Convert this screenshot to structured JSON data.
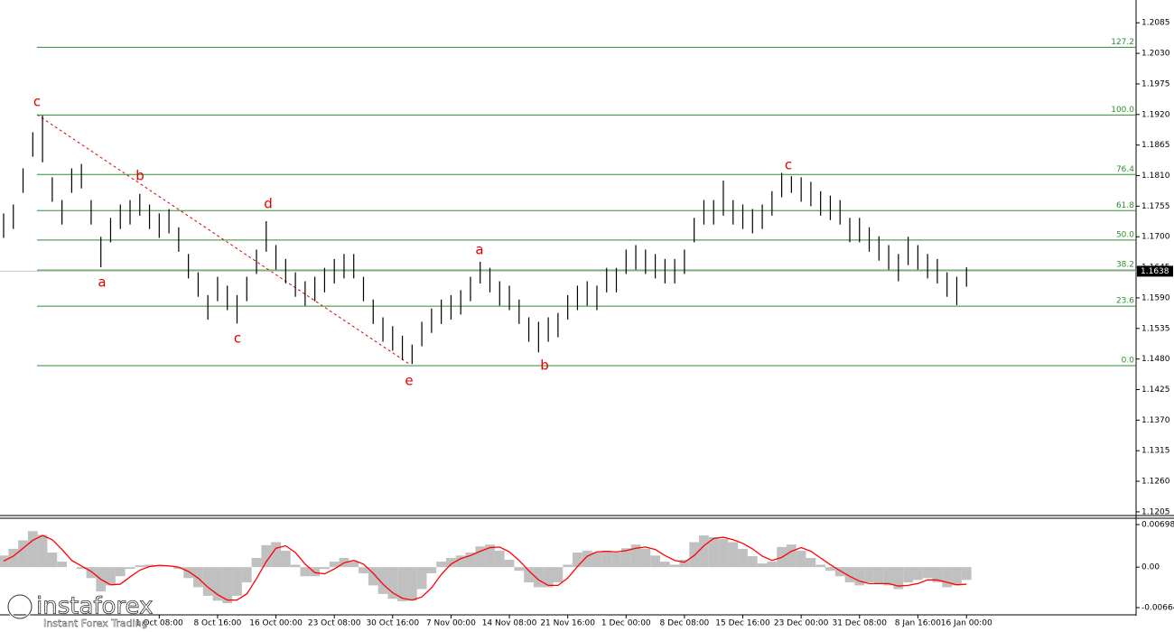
{
  "chart_data": [
    {
      "type": "hilo",
      "color": "#000000",
      "high": [
        1.1742,
        1.1758,
        1.1823,
        1.1888,
        1.1918,
        1.1807,
        1.1766,
        1.1823,
        1.1831,
        1.1766,
        1.17,
        1.1734,
        1.1758,
        1.1766,
        1.1777,
        1.1758,
        1.1742,
        1.175,
        1.1717,
        1.1669,
        1.1636,
        1.1595,
        1.1628,
        1.1612,
        1.1595,
        1.1628,
        1.1677,
        1.1728,
        1.1685,
        1.166,
        1.1636,
        1.162,
        1.1628,
        1.1644,
        1.166,
        1.1669,
        1.1669,
        1.1628,
        1.1587,
        1.1555,
        1.1539,
        1.1522,
        1.1506,
        1.1547,
        1.1571,
        1.1587,
        1.1595,
        1.1604,
        1.1628,
        1.1655,
        1.1644,
        1.162,
        1.1612,
        1.1587,
        1.1555,
        1.1547,
        1.1555,
        1.1563,
        1.1595,
        1.1612,
        1.162,
        1.1612,
        1.1644,
        1.1644,
        1.1677,
        1.1685,
        1.1677,
        1.1669,
        1.166,
        1.166,
        1.1677,
        1.1734,
        1.1766,
        1.1766,
        1.1801,
        1.1766,
        1.1758,
        1.175,
        1.1758,
        1.1782,
        1.1815,
        1.1809,
        1.1807,
        1.1799,
        1.1782,
        1.1774,
        1.1766,
        1.1734,
        1.1734,
        1.1717,
        1.1701,
        1.1685,
        1.1669,
        1.17,
        1.1685,
        1.1669,
        1.166,
        1.1636,
        1.1628,
        1.1645
      ],
      "low": [
        1.1698,
        1.1714,
        1.1779,
        1.1844,
        1.1834,
        1.1763,
        1.1722,
        1.1779,
        1.1787,
        1.1722,
        1.1645,
        1.169,
        1.1714,
        1.1722,
        1.1738,
        1.1714,
        1.1698,
        1.1706,
        1.1673,
        1.1625,
        1.1592,
        1.1551,
        1.1584,
        1.1568,
        1.1544,
        1.1584,
        1.1633,
        1.1673,
        1.1641,
        1.1616,
        1.1592,
        1.1576,
        1.1584,
        1.16,
        1.1616,
        1.1625,
        1.1625,
        1.1584,
        1.1543,
        1.1511,
        1.1495,
        1.1478,
        1.1471,
        1.1503,
        1.1527,
        1.1543,
        1.1551,
        1.156,
        1.1584,
        1.1616,
        1.16,
        1.1576,
        1.1568,
        1.1543,
        1.1511,
        1.1492,
        1.1511,
        1.1519,
        1.1551,
        1.1568,
        1.1576,
        1.1568,
        1.16,
        1.16,
        1.1633,
        1.1641,
        1.1633,
        1.1625,
        1.1616,
        1.1616,
        1.1633,
        1.169,
        1.1722,
        1.1722,
        1.1738,
        1.1722,
        1.1714,
        1.1706,
        1.1714,
        1.1738,
        1.1771,
        1.1779,
        1.1763,
        1.1755,
        1.1738,
        1.173,
        1.1722,
        1.169,
        1.169,
        1.1673,
        1.1657,
        1.1641,
        1.162,
        1.1649,
        1.1641,
        1.1625,
        1.1616,
        1.1592,
        1.1577,
        1.161
      ],
      "ylim": [
        1.12,
        1.2126
      ],
      "yticks": [
        {
          "value": 1.2085,
          "label": "1.2085"
        },
        {
          "value": 1.203,
          "label": "1.2030"
        },
        {
          "value": 1.1975,
          "label": "1.1975"
        },
        {
          "value": 1.192,
          "label": "1.1920"
        },
        {
          "value": 1.1865,
          "label": "1.1865"
        },
        {
          "value": 1.181,
          "label": "1.1810"
        },
        {
          "value": 1.1755,
          "label": "1.1755"
        },
        {
          "value": 1.17,
          "label": "1.1700"
        },
        {
          "value": 1.1645,
          "label": "1.1645"
        },
        {
          "value": 1.159,
          "label": "1.1590"
        },
        {
          "value": 1.1535,
          "label": "1.1535"
        },
        {
          "value": 1.148,
          "label": "1.1480"
        },
        {
          "value": 1.1425,
          "label": "1.1425"
        },
        {
          "value": 1.137,
          "label": "1.1370"
        },
        {
          "value": 1.1315,
          "label": "1.1315"
        },
        {
          "value": 1.126,
          "label": "1.1260"
        },
        {
          "value": 1.1205,
          "label": "1.1205"
        }
      ],
      "fib_color": "#2e8b2e",
      "fib_levels": [
        {
          "value": 1.2041,
          "label": "127.2"
        },
        {
          "value": 1.1919,
          "label": "100.0"
        },
        {
          "value": 1.1812,
          "label": "76.4"
        },
        {
          "value": 1.1747,
          "label": "61.8"
        },
        {
          "value": 1.1694,
          "label": "50.0"
        },
        {
          "value": 1.164,
          "label": "38.2"
        },
        {
          "value": 1.1575,
          "label": "23.6"
        },
        {
          "value": 1.1468,
          "label": "0.0"
        }
      ],
      "annotations": [
        "c",
        "a",
        "b",
        "c",
        "d",
        "e",
        "a",
        "b",
        "c"
      ],
      "annotation_color": "#e00000",
      "last_price": 1.1638
    },
    {
      "type": "macd",
      "categories": [
        null,
        null,
        null,
        null,
        null,
        null,
        null,
        null,
        null,
        null,
        null,
        null,
        null,
        null,
        null,
        null,
        "1 Oct 08:00",
        null,
        null,
        null,
        null,
        null,
        "8 Oct 16:00",
        null,
        null,
        null,
        null,
        null,
        "16 Oct 00:00",
        null,
        null,
        null,
        null,
        null,
        "23 Oct 08:00",
        null,
        null,
        null,
        null,
        null,
        "30 Oct 16:00",
        null,
        null,
        null,
        null,
        null,
        "7 Nov 00:00",
        null,
        null,
        null,
        null,
        null,
        "14 Nov 08:00",
        null,
        null,
        null,
        null,
        null,
        "21 Nov 16:00",
        null,
        null,
        null,
        null,
        null,
        "1 Dec 00:00",
        null,
        null,
        null,
        null,
        null,
        "8 Dec 08:00",
        null,
        null,
        null,
        null,
        null,
        "15 Dec 16:00",
        null,
        null,
        null,
        null,
        null,
        "23 Dec 00:00",
        null,
        null,
        null,
        null,
        null,
        "31 Dec 08:00",
        null,
        null,
        null,
        null,
        null,
        "8 Jan 16:00",
        null,
        null,
        null,
        null,
        "16 Jan 00:00"
      ],
      "histogram": {
        "color": "#c0c0c0",
        "values": [
          0.0019,
          0.003,
          0.0044,
          0.0059,
          0.0053,
          0.0024,
          0.0009,
          0,
          -0.0003,
          -0.0018,
          -0.004,
          -0.003,
          -0.0015,
          -0.0003,
          0.0003,
          0.0004,
          0.0001,
          0,
          -0.0003,
          -0.0018,
          -0.0033,
          -0.0047,
          -0.0055,
          -0.0059,
          -0.0047,
          -0.0025,
          0.0015,
          0.0036,
          0.0041,
          0.0027,
          0.0004,
          -0.0015,
          -0.0015,
          -0.0003,
          0.0009,
          0.0015,
          0.0009,
          -0.001,
          -0.003,
          -0.0044,
          -0.0052,
          -0.0056,
          -0.0055,
          -0.0036,
          -0.001,
          0.0009,
          0.0015,
          0.0019,
          0.0024,
          0.0034,
          0.0037,
          0.0027,
          0.0012,
          -0.0006,
          -0.0025,
          -0.0033,
          -0.0033,
          -0.0025,
          0.0004,
          0.0024,
          0.0027,
          0.0024,
          0.0027,
          0.0024,
          0.0031,
          0.0037,
          0.003,
          0.0019,
          0.0009,
          0.0004,
          0.0012,
          0.0041,
          0.0052,
          0.0049,
          0.0046,
          0.0041,
          0.003,
          0.0018,
          0.0006,
          0.0009,
          0.0033,
          0.0037,
          0.0027,
          0.0015,
          0.0004,
          -0.0006,
          -0.0015,
          -0.0025,
          -0.003,
          -0.0025,
          -0.0027,
          -0.003,
          -0.0036,
          -0.0025,
          -0.0021,
          -0.0018,
          -0.0025,
          -0.0033,
          -0.003,
          -0.0021
        ]
      },
      "signal": {
        "color": "#ff0000",
        "values": [
          0.001,
          0.0018,
          0.0031,
          0.0044,
          0.0052,
          0.0045,
          0.0029,
          0.0011,
          0.0002,
          -0.0007,
          -0.002,
          -0.0029,
          -0.0028,
          -0.0016,
          -0.0005,
          0.0001,
          0.0003,
          0.0002,
          0,
          -0.0007,
          -0.0018,
          -0.0033,
          -0.0045,
          -0.0054,
          -0.0054,
          -0.0044,
          -0.0019,
          0.0009,
          0.0031,
          0.0035,
          0.0024,
          0.0005,
          -0.0009,
          -0.0011,
          -0.0003,
          0.0007,
          0.0011,
          0.0005,
          -0.001,
          -0.0028,
          -0.0042,
          -0.0051,
          -0.0054,
          -0.0049,
          -0.0034,
          -0.0012,
          0.0005,
          0.0014,
          0.0019,
          0.0026,
          0.0032,
          0.0033,
          0.0025,
          0.0011,
          -0.0006,
          -0.0021,
          -0.003,
          -0.003,
          -0.0018,
          0.0001,
          0.0018,
          0.0025,
          0.0026,
          0.0025,
          0.0027,
          0.0031,
          0.0033,
          0.0029,
          0.0019,
          0.0011,
          0.0008,
          0.0019,
          0.0035,
          0.0047,
          0.0049,
          0.0045,
          0.0039,
          0.003,
          0.0018,
          0.0011,
          0.0016,
          0.0026,
          0.0032,
          0.0026,
          0.0015,
          0.0004,
          -0.0006,
          -0.0015,
          -0.0023,
          -0.0027,
          -0.0027,
          -0.0027,
          -0.0031,
          -0.003,
          -0.0027,
          -0.0021,
          -0.0021,
          -0.0025,
          -0.0029,
          -0.0028
        ]
      },
      "ylim": [
        -0.00768,
        0.00802
      ],
      "yticks": [
        0.00698,
        {
          "value": 0,
          "label": "0.00"
        },
        -0.00664
      ]
    }
  ],
  "watermark": {
    "name": "instaforex",
    "tagline": "Instant Forex Trading"
  }
}
